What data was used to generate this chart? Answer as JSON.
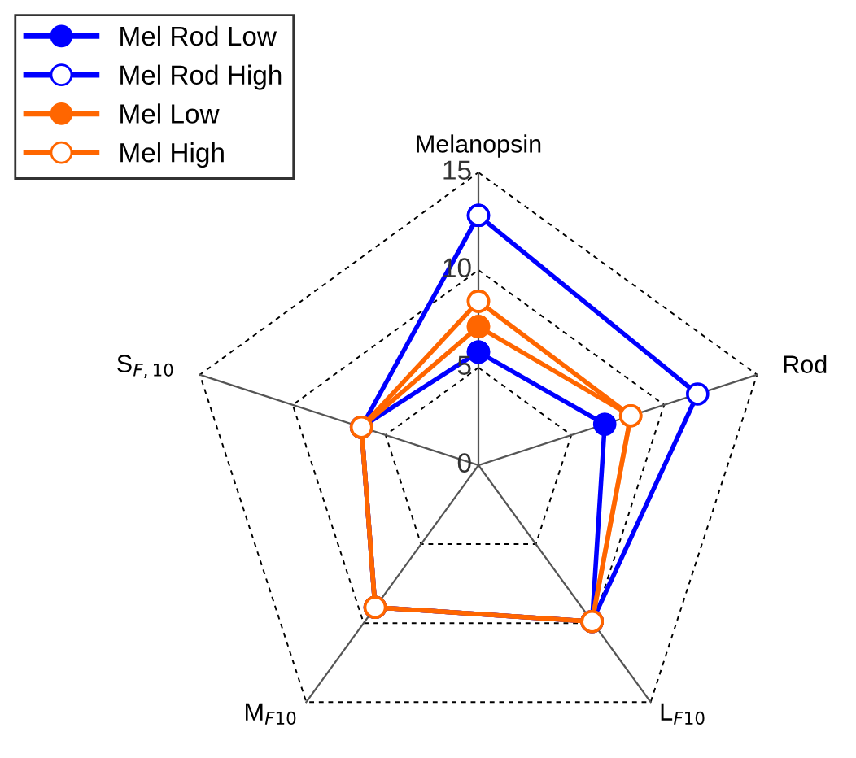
{
  "chart_data": {
    "type": "radar",
    "categories": [
      "Melanopsin",
      "Rod",
      "L$_{F10}$",
      "M$_{F10}$",
      "S$_{F,10}$"
    ],
    "ylim": [
      0,
      15
    ],
    "yticks": [
      0,
      5,
      10,
      15
    ],
    "grid": true,
    "legend": "top left",
    "marker": "circle",
    "line_style": "solid",
    "series": [
      {
        "name": "Mel Rod Low",
        "color": "#0000ff",
        "values": [
          5.8,
          6.8,
          9.9,
          9.0,
          6.3
        ]
      },
      {
        "name": "Mel Rod High",
        "color": "#0000ff",
        "values": [
          12.8,
          11.8,
          9.9,
          9.0,
          6.3
        ]
      },
      {
        "name": "Mel Low",
        "color": "#ff6600",
        "values": [
          7.1,
          8.2,
          9.9,
          9.0,
          6.3
        ]
      },
      {
        "name": "Mel High",
        "color": "#ff6600",
        "values": [
          8.4,
          8.2,
          9.9,
          9.0,
          6.3
        ]
      }
    ]
  }
}
